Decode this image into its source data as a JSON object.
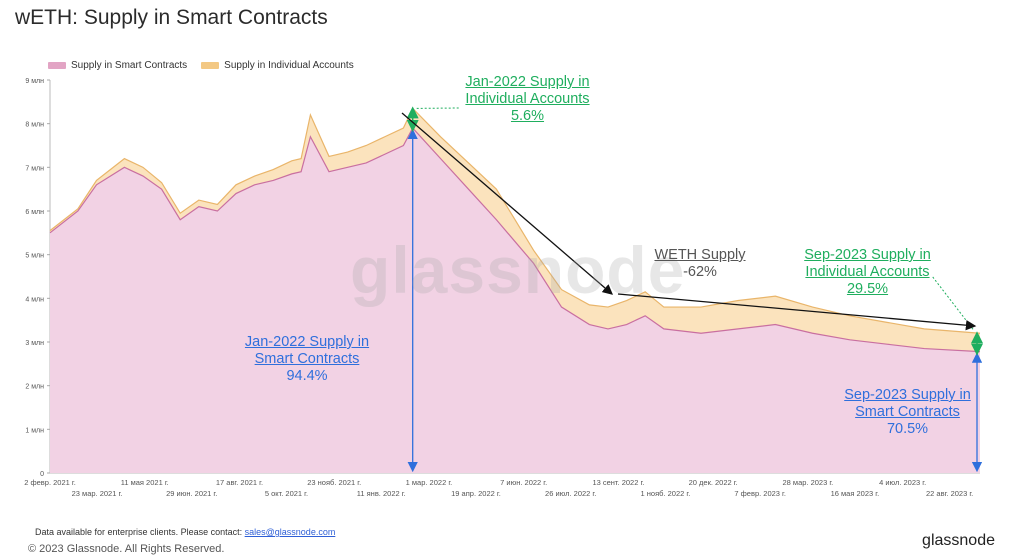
{
  "title": "wETH: Supply in Smart Contracts",
  "legend": [
    {
      "label": "Supply in Smart Contracts",
      "color": "#e2a4c4"
    },
    {
      "label": "Supply in Individual Accounts",
      "color": "#f3c883"
    }
  ],
  "watermark": "glassnode",
  "annotations": {
    "jan_individual": {
      "line1": "Jan-2022 Supply in",
      "line2": "Individual Accounts",
      "value": "5.6%"
    },
    "jan_smart": {
      "line1": "Jan-2022 Supply in",
      "line2": "Smart Contracts",
      "value": "94.4%"
    },
    "weth": {
      "line1": "WETH Supply",
      "value": "-62%"
    },
    "sep_individual": {
      "line1": "Sep-2023 Supply in",
      "line2": "Individual Accounts",
      "value": "29.5%"
    },
    "sep_smart": {
      "line1": "Sep-2023 Supply in",
      "line2": "Smart Contracts",
      "value": "70.5%"
    }
  },
  "footer": {
    "contact": "Data available for enterprise clients. Please contact:",
    "email": "sales@glassnode.com",
    "copyright": "© 2023 Glassnode. All Rights Reserved.",
    "brand": "glassnode"
  },
  "colors": {
    "smart_fill": "#f2d2e4",
    "smart_line": "#c96fa0",
    "indiv_fill": "#fbe3bd",
    "indiv_line": "#e9b56a",
    "green": "#1fae5e",
    "blue": "#2f6fdc",
    "trend": "#111111"
  },
  "chart_data": {
    "type": "area",
    "title": "wETH: Supply in Smart Contracts",
    "ylim": [
      0,
      9000000
    ],
    "y_ticks": [
      "0",
      "1 млн",
      "2 млн",
      "3 млн",
      "4 млн",
      "5 млн",
      "6 млн",
      "7 млн",
      "8 млн",
      "9 млн"
    ],
    "x_tick_labels_top": [
      "2 февр. 2021 г.",
      "11 мая 2021 г.",
      "17 авг. 2021 г.",
      "23 нояб. 2021 г.",
      "1 мар. 2022 г.",
      "7 июн. 2022 г.",
      "13 сент. 2022 г.",
      "20 дек. 2022 г.",
      "28 мар. 2023 г.",
      "4 июл. 2023 г."
    ],
    "x_tick_labels_bottom": [
      "23 мар. 2021 г.",
      "29 июн. 2021 г.",
      "5 окт. 2021 г.",
      "11 янв. 2022 г.",
      "19 апр. 2022 г.",
      "26 июл. 2022 г.",
      "1 нояб. 2022 г.",
      "7 февр. 2023 г.",
      "16 мая 2023 г.",
      "22 авг. 2023 г."
    ],
    "x": [
      0,
      0.03,
      0.05,
      0.08,
      0.1,
      0.12,
      0.14,
      0.16,
      0.18,
      0.2,
      0.22,
      0.24,
      0.26,
      0.27,
      0.28,
      0.3,
      0.32,
      0.34,
      0.36,
      0.38,
      0.39,
      0.42,
      0.45,
      0.48,
      0.5,
      0.52,
      0.55,
      0.58,
      0.6,
      0.62,
      0.64,
      0.66,
      0.7,
      0.74,
      0.78,
      0.82,
      0.86,
      0.9,
      0.94,
      1.0
    ],
    "series": [
      {
        "name": "Supply in Smart Contracts",
        "values": [
          5500000,
          6000000,
          6600000,
          7000000,
          6800000,
          6500000,
          5800000,
          6100000,
          6000000,
          6400000,
          6600000,
          6700000,
          6850000,
          6900000,
          7700000,
          6900000,
          7000000,
          7100000,
          7300000,
          7500000,
          7900000,
          7200000,
          6500000,
          5800000,
          5300000,
          4800000,
          3800000,
          3400000,
          3300000,
          3400000,
          3600000,
          3300000,
          3200000,
          3300000,
          3400000,
          3200000,
          3050000,
          2950000,
          2850000,
          2780000
        ]
      },
      {
        "name": "Supply in Individual Accounts",
        "values": [
          5550000,
          6050000,
          6700000,
          7200000,
          7000000,
          6650000,
          5950000,
          6250000,
          6150000,
          6600000,
          6800000,
          6950000,
          7150000,
          7200000,
          8200000,
          7250000,
          7350000,
          7500000,
          7700000,
          7900000,
          8350000,
          7700000,
          7100000,
          6500000,
          5800000,
          5100000,
          4200000,
          3850000,
          3800000,
          3950000,
          4150000,
          3800000,
          3800000,
          3950000,
          4050000,
          3800000,
          3600000,
          3450000,
          3300000,
          3200000
        ]
      }
    ]
  }
}
